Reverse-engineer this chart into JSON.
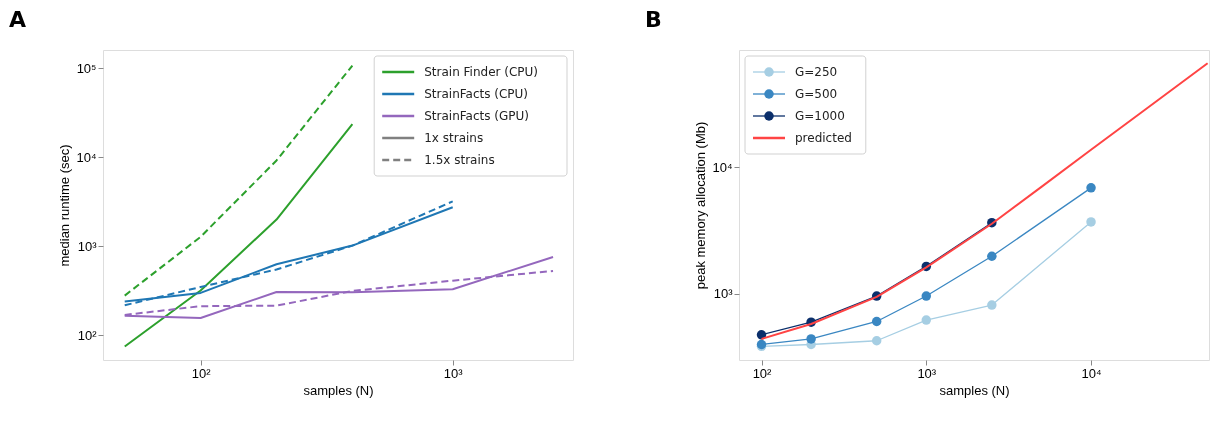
{
  "chart_data": [
    {
      "type": "line",
      "title": "A",
      "xlabel": "samples (N)",
      "ylabel": "median runtime (sec)",
      "log": "xy",
      "grid": false,
      "legend": "top right",
      "xlim": [
        41,
        3000
      ],
      "ylim": [
        53,
        160000
      ],
      "xticks": [
        {
          "value": 100,
          "label": "10²"
        },
        {
          "value": 1000,
          "label": "10³"
        }
      ],
      "yticks": [
        {
          "value": 100,
          "label": "10²"
        },
        {
          "value": 1000,
          "label": "10³"
        },
        {
          "value": 10000,
          "label": "10⁴"
        },
        {
          "value": 100000,
          "label": "10⁵"
        }
      ],
      "annotations": [
        "1x strains",
        "1.5x strains"
      ],
      "series": [
        {
          "name": "Strain Finder (CPU)",
          "color": "#2ca02c",
          "line_style": "solid",
          "x": [
            50,
            100,
            200,
            400
          ],
          "values": [
            75,
            320,
            2000,
            23500
          ]
        },
        {
          "color": "#2ca02c",
          "line_style": "dashed",
          "x": [
            50,
            100,
            200,
            400
          ],
          "values": [
            280,
            1280,
            9200,
            107000
          ]
        },
        {
          "name": "StrainFacts (CPU)",
          "color": "#1f77b4",
          "line_style": "solid",
          "x": [
            50,
            100,
            200,
            400,
            1000
          ],
          "values": [
            240,
            300,
            630,
            1020,
            2750
          ]
        },
        {
          "color": "#1f77b4",
          "line_style": "dashed",
          "x": [
            50,
            100,
            200,
            400,
            1000
          ],
          "values": [
            218,
            350,
            550,
            1020,
            3200
          ]
        },
        {
          "name": "StrainFacts (GPU)",
          "color": "#9467bd",
          "line_style": "solid",
          "x": [
            50,
            100,
            200,
            400,
            1000,
            2500
          ],
          "values": [
            166,
            157,
            307,
            305,
            330,
            760
          ]
        },
        {
          "color": "#9467bd",
          "line_style": "dashed",
          "x": [
            50,
            100,
            200,
            400,
            1000,
            2500
          ],
          "values": [
            170,
            213,
            216,
            316,
            412,
            530
          ]
        }
      ]
    },
    {
      "type": "line",
      "title": "B",
      "xlabel": "samples (N)",
      "ylabel": "peak memory allocation (Mb)",
      "log": "xy",
      "grid": false,
      "legend": "top left",
      "xlim": [
        73,
        52000
      ],
      "ylim": [
        300,
        85000
      ],
      "xticks": [
        {
          "value": 100,
          "label": "10²"
        },
        {
          "value": 1000,
          "label": "10³"
        },
        {
          "value": 10000,
          "label": "10⁴"
        }
      ],
      "yticks": [
        {
          "value": 1000,
          "label": "10³"
        },
        {
          "value": 10000,
          "label": "10⁴"
        }
      ],
      "series": [
        {
          "name": "G=250",
          "color": "#a6cee3",
          "marker": "circle",
          "x": [
            100,
            200,
            500,
            1000,
            2500,
            10000
          ],
          "values": [
            385,
            398,
            426,
            621,
            816,
            3710
          ]
        },
        {
          "name": "G=500",
          "color": "#3a87c2",
          "marker": "circle",
          "x": [
            100,
            200,
            500,
            1000,
            2500,
            10000
          ],
          "values": [
            398,
            440,
            605,
            962,
            1985,
            6900
          ]
        },
        {
          "name": "G=1000",
          "color": "#0b2f6b",
          "marker": "circle",
          "x": [
            100,
            200,
            500,
            1000,
            2500
          ],
          "values": [
            475,
            597,
            962,
            1650,
            3660
          ]
        },
        {
          "name": "predicted",
          "color": "#ff4444",
          "marker": "none",
          "x": [
            100,
            200,
            500,
            1000,
            2500,
            5000,
            10000,
            20000,
            51000
          ],
          "values": [
            440,
            578,
            948,
            1620,
            3590,
            7030,
            13800,
            27000,
            66700
          ]
        }
      ]
    }
  ]
}
